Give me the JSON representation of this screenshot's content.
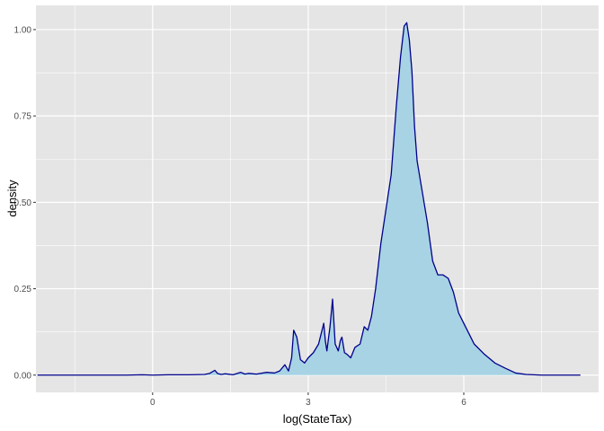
{
  "chart_data": {
    "type": "area",
    "title": "",
    "xlabel": "log(StateTax)",
    "ylabel": "density",
    "xlim": [
      -2.25,
      8.6
    ],
    "ylim": [
      -0.05,
      1.07
    ],
    "x_ticks": [
      0,
      3,
      6
    ],
    "x_tick_labels": [
      "0",
      "3",
      "6"
    ],
    "x_minor_ticks": [
      -1.5,
      1.5,
      4.5,
      7.5
    ],
    "y_ticks": [
      0,
      0.25,
      0.5,
      0.75,
      1.0
    ],
    "y_tick_labels": [
      "0.00",
      "0.25",
      "0.50",
      "0.75",
      "1.00"
    ],
    "grid": true,
    "legend": "none",
    "colors": {
      "panel_background": "#e5e5e5",
      "grid": "#ffffff",
      "fill": "#a7d3e4",
      "line": "#00008b"
    },
    "series": [
      {
        "x": [
          -2.22,
          -1.5,
          -0.5,
          -0.2,
          0.0,
          0.3,
          0.7,
          1.0,
          1.1,
          1.2,
          1.25,
          1.32,
          1.4,
          1.55,
          1.7,
          1.78,
          1.85,
          2.0,
          2.2,
          2.35,
          2.45,
          2.55,
          2.62,
          2.68,
          2.72,
          2.78,
          2.85,
          2.93,
          3.0,
          3.1,
          3.2,
          3.3,
          3.33,
          3.36,
          3.42,
          3.47,
          3.52,
          3.58,
          3.62,
          3.65,
          3.7,
          3.75,
          3.82,
          3.9,
          4.0,
          4.08,
          4.15,
          4.22,
          4.3,
          4.4,
          4.5,
          4.6,
          4.7,
          4.78,
          4.85,
          4.9,
          4.95,
          5.0,
          5.05,
          5.1,
          5.2,
          5.3,
          5.4,
          5.5,
          5.6,
          5.7,
          5.8,
          5.9,
          6.0,
          6.1,
          6.2,
          6.4,
          6.6,
          6.8,
          7.0,
          7.2,
          7.5,
          8.0,
          8.25
        ],
        "y": [
          0.0,
          0.0,
          0.0,
          0.001,
          0.0,
          0.001,
          0.001,
          0.002,
          0.005,
          0.014,
          0.005,
          0.002,
          0.004,
          0.001,
          0.008,
          0.003,
          0.005,
          0.003,
          0.008,
          0.006,
          0.012,
          0.03,
          0.012,
          0.05,
          0.13,
          0.11,
          0.045,
          0.035,
          0.05,
          0.065,
          0.09,
          0.15,
          0.1,
          0.07,
          0.14,
          0.22,
          0.09,
          0.07,
          0.1,
          0.11,
          0.065,
          0.06,
          0.05,
          0.08,
          0.09,
          0.14,
          0.13,
          0.17,
          0.25,
          0.38,
          0.48,
          0.58,
          0.78,
          0.92,
          1.01,
          1.02,
          0.97,
          0.88,
          0.72,
          0.62,
          0.53,
          0.44,
          0.33,
          0.29,
          0.29,
          0.28,
          0.24,
          0.18,
          0.15,
          0.12,
          0.09,
          0.06,
          0.035,
          0.02,
          0.006,
          0.002,
          0.0,
          0.0,
          0.0
        ]
      }
    ]
  }
}
